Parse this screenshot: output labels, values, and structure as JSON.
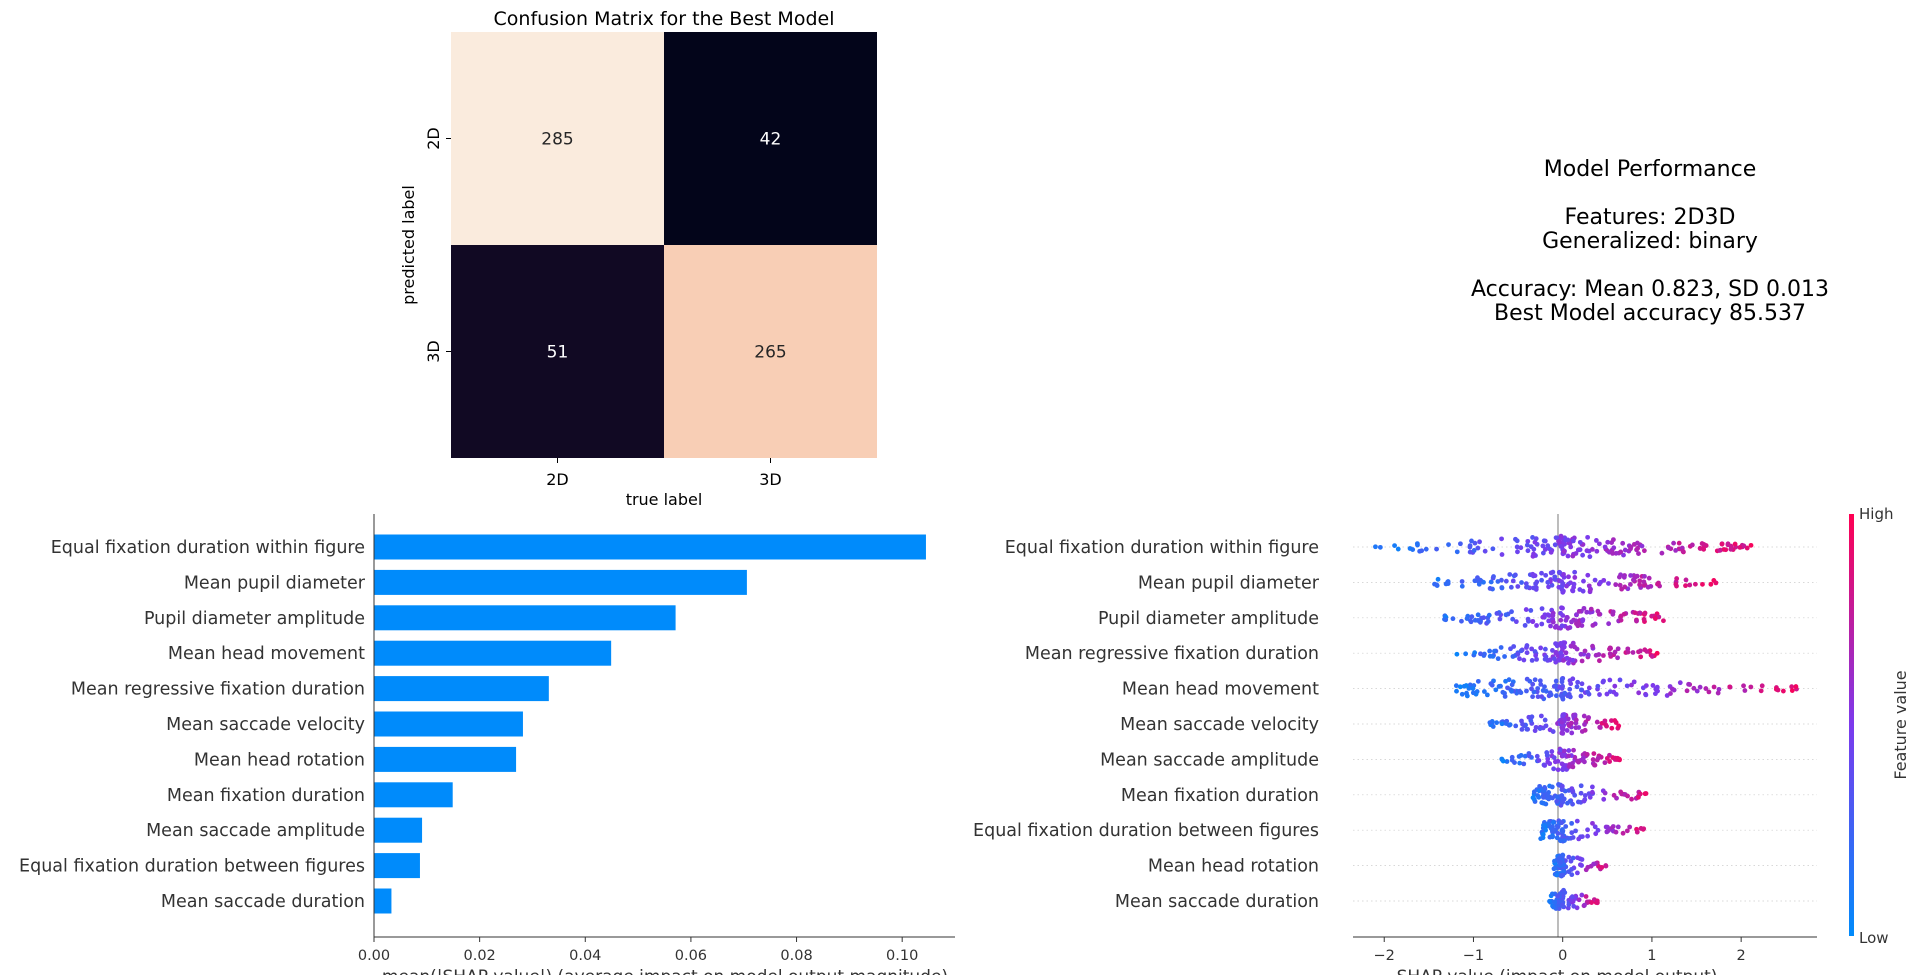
{
  "colors": {
    "bar": "#008BFB",
    "shap_low": "#008BFB",
    "shap_mid": "#7C3AED",
    "shap_high": "#FF0052"
  },
  "performance": {
    "heading": "Model Performance",
    "features": "Features: 2D3D",
    "generalized": "Generalized: binary",
    "accuracy": "Accuracy: Mean 0.823, SD 0.013",
    "best": "Best Model accuracy 85.537"
  },
  "chart_data": [
    {
      "type": "heatmap",
      "title": "Confusion Matrix for the Best Model",
      "xlabel": "true label",
      "ylabel": "predicted label",
      "x_categories": [
        "2D",
        "3D"
      ],
      "y_categories": [
        "2D",
        "3D"
      ],
      "values": [
        [
          285,
          42
        ],
        [
          51,
          265
        ]
      ],
      "colorbar": false
    },
    {
      "type": "bar",
      "orientation": "horizontal",
      "categories": [
        "Equal fixation duration within figure",
        "Mean pupil diameter",
        "Pupil diameter amplitude",
        "Mean head movement",
        "Mean regressive fixation duration",
        "Mean saccade velocity",
        "Mean head rotation",
        "Mean fixation duration",
        "Mean saccade amplitude",
        "Equal fixation duration between figures",
        "Mean saccade duration"
      ],
      "values": [
        0.1045,
        0.0706,
        0.0571,
        0.0449,
        0.0331,
        0.0282,
        0.0269,
        0.0149,
        0.0091,
        0.0087,
        0.0033
      ],
      "xlabel": "mean(|SHAP value|) (average impact on model output magnitude)",
      "xlim": [
        0,
        0.11
      ],
      "xticks": [
        "0.00",
        "0.02",
        "0.04",
        "0.06",
        "0.08",
        "0.10"
      ],
      "grid": false
    },
    {
      "type": "scatter",
      "subtype": "beeswarm",
      "categories": [
        "Equal fixation duration within figure",
        "Mean pupil diameter",
        "Pupil diameter amplitude",
        "Mean regressive fixation duration",
        "Mean head movement",
        "Mean saccade velocity",
        "Mean saccade amplitude",
        "Mean fixation duration",
        "Equal fixation duration between figures",
        "Mean head rotation",
        "Mean saccade duration"
      ],
      "ranges": [
        [
          -2.15,
          2.2
        ],
        [
          -1.5,
          1.75
        ],
        [
          -1.4,
          1.2
        ],
        [
          -1.2,
          1.1
        ],
        [
          -1.2,
          2.65
        ],
        [
          -0.85,
          0.65
        ],
        [
          -0.7,
          0.65
        ],
        [
          -0.35,
          1.05
        ],
        [
          -0.25,
          0.95
        ],
        [
          -0.1,
          0.5
        ],
        [
          -0.15,
          0.4
        ]
      ],
      "xlabel": "SHAP value (impact on model output)",
      "xlim": [
        -2.35,
        2.85
      ],
      "xticks": [
        -2,
        -1,
        0,
        1,
        2
      ],
      "colorbar": {
        "label": "Feature value",
        "high": "High",
        "low": "Low"
      }
    }
  ]
}
